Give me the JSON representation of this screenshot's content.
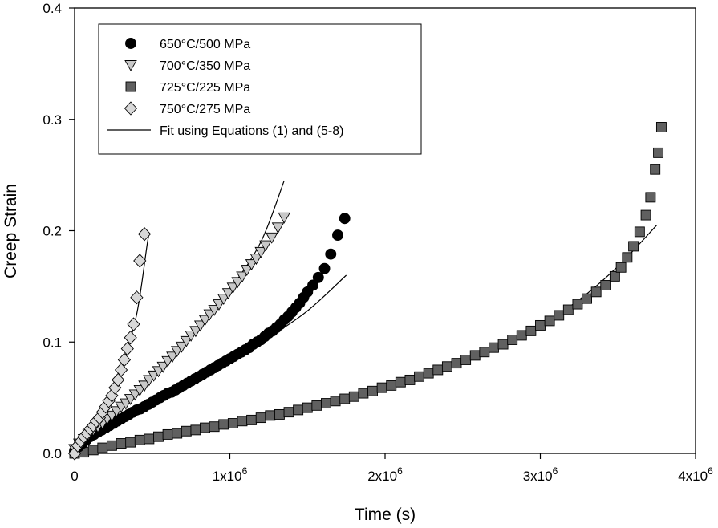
{
  "chart_data": {
    "type": "scatter",
    "title": "",
    "xlabel": "Time (s)",
    "ylabel": "Creep Strain",
    "xlim": [
      0,
      4000000
    ],
    "ylim": [
      0,
      0.4
    ],
    "x_ticks": [
      {
        "value": 0,
        "label": "0",
        "sup": ""
      },
      {
        "value": 1000000,
        "label": "1x10",
        "sup": "6"
      },
      {
        "value": 2000000,
        "label": "2x10",
        "sup": "6"
      },
      {
        "value": 3000000,
        "label": "3x10",
        "sup": "6"
      },
      {
        "value": 4000000,
        "label": "4x10",
        "sup": "6"
      }
    ],
    "y_ticks": [
      {
        "value": 0,
        "label": "0.0"
      },
      {
        "value": 0.1,
        "label": "0.1"
      },
      {
        "value": 0.2,
        "label": "0.2"
      },
      {
        "value": 0.3,
        "label": "0.3"
      },
      {
        "value": 0.4,
        "label": "0.4"
      }
    ],
    "grid": false,
    "legend_position": "top-left",
    "series": [
      {
        "name": "650°C/500 MPa",
        "marker": "circle",
        "color": "#000000",
        "tmax": 1750000,
        "points": [
          [
            0,
            0.002
          ],
          [
            25000,
            0.006
          ],
          [
            50000,
            0.009
          ],
          [
            75000,
            0.012
          ],
          [
            100000,
            0.015
          ],
          [
            125000,
            0.017
          ],
          [
            150000,
            0.019
          ],
          [
            175000,
            0.021
          ],
          [
            200000,
            0.023
          ],
          [
            225000,
            0.025
          ],
          [
            250000,
            0.027
          ],
          [
            275000,
            0.029
          ],
          [
            300000,
            0.031
          ],
          [
            325000,
            0.033
          ],
          [
            350000,
            0.035
          ],
          [
            375000,
            0.037
          ],
          [
            400000,
            0.039
          ],
          [
            425000,
            0.04
          ],
          [
            450000,
            0.042
          ],
          [
            475000,
            0.044
          ],
          [
            500000,
            0.046
          ],
          [
            525000,
            0.048
          ],
          [
            550000,
            0.05
          ],
          [
            575000,
            0.052
          ],
          [
            600000,
            0.054
          ],
          [
            625000,
            0.055
          ],
          [
            650000,
            0.057
          ],
          [
            675000,
            0.059
          ],
          [
            700000,
            0.061
          ],
          [
            725000,
            0.063
          ],
          [
            750000,
            0.065
          ],
          [
            775000,
            0.067
          ],
          [
            800000,
            0.069
          ],
          [
            825000,
            0.071
          ],
          [
            850000,
            0.073
          ],
          [
            875000,
            0.075
          ],
          [
            900000,
            0.077
          ],
          [
            925000,
            0.079
          ],
          [
            950000,
            0.081
          ],
          [
            975000,
            0.083
          ],
          [
            1000000,
            0.085
          ],
          [
            1025000,
            0.087
          ],
          [
            1050000,
            0.089
          ],
          [
            1075000,
            0.091
          ],
          [
            1100000,
            0.093
          ],
          [
            1125000,
            0.095
          ],
          [
            1150000,
            0.098
          ],
          [
            1175000,
            0.1
          ],
          [
            1200000,
            0.102
          ],
          [
            1225000,
            0.105
          ],
          [
            1250000,
            0.108
          ],
          [
            1275000,
            0.11
          ],
          [
            1300000,
            0.113
          ],
          [
            1325000,
            0.116
          ],
          [
            1350000,
            0.12
          ],
          [
            1375000,
            0.123
          ],
          [
            1400000,
            0.127
          ],
          [
            1425000,
            0.131
          ],
          [
            1450000,
            0.135
          ],
          [
            1475000,
            0.14
          ],
          [
            1500000,
            0.145
          ],
          [
            1535000,
            0.151
          ],
          [
            1570000,
            0.158
          ],
          [
            1610000,
            0.166
          ],
          [
            1650000,
            0.179
          ],
          [
            1695000,
            0.196
          ],
          [
            1740000,
            0.211
          ]
        ]
      },
      {
        "name": "700°C/350 MPa",
        "marker": "triangle-down",
        "color": "#c8c8c8",
        "tmax": 1350000,
        "points": [
          [
            0,
            0.004
          ],
          [
            30000,
            0.009
          ],
          [
            60000,
            0.013
          ],
          [
            90000,
            0.017
          ],
          [
            120000,
            0.021
          ],
          [
            150000,
            0.024
          ],
          [
            180000,
            0.027
          ],
          [
            210000,
            0.031
          ],
          [
            240000,
            0.034
          ],
          [
            270000,
            0.038
          ],
          [
            300000,
            0.042
          ],
          [
            330000,
            0.045
          ],
          [
            360000,
            0.049
          ],
          [
            390000,
            0.053
          ],
          [
            420000,
            0.057
          ],
          [
            450000,
            0.061
          ],
          [
            480000,
            0.066
          ],
          [
            510000,
            0.07
          ],
          [
            540000,
            0.074
          ],
          [
            570000,
            0.078
          ],
          [
            600000,
            0.083
          ],
          [
            630000,
            0.087
          ],
          [
            660000,
            0.092
          ],
          [
            690000,
            0.096
          ],
          [
            720000,
            0.101
          ],
          [
            750000,
            0.106
          ],
          [
            780000,
            0.11
          ],
          [
            810000,
            0.115
          ],
          [
            840000,
            0.12
          ],
          [
            870000,
            0.125
          ],
          [
            900000,
            0.129
          ],
          [
            930000,
            0.134
          ],
          [
            960000,
            0.139
          ],
          [
            990000,
            0.144
          ],
          [
            1020000,
            0.149
          ],
          [
            1050000,
            0.154
          ],
          [
            1080000,
            0.159
          ],
          [
            1110000,
            0.165
          ],
          [
            1140000,
            0.17
          ],
          [
            1170000,
            0.175
          ],
          [
            1200000,
            0.181
          ],
          [
            1230000,
            0.187
          ],
          [
            1270000,
            0.194
          ],
          [
            1310000,
            0.203
          ],
          [
            1350000,
            0.212
          ]
        ]
      },
      {
        "name": "725°C/225 MPa",
        "marker": "square",
        "color": "#606060",
        "tmax": 3750000,
        "points": [
          [
            0,
            0
          ],
          [
            60000,
            0.001
          ],
          [
            120000,
            0.003
          ],
          [
            180000,
            0.005
          ],
          [
            240000,
            0.007
          ],
          [
            300000,
            0.009
          ],
          [
            360000,
            0.01
          ],
          [
            420000,
            0.012
          ],
          [
            480000,
            0.013
          ],
          [
            540000,
            0.015
          ],
          [
            600000,
            0.017
          ],
          [
            660000,
            0.018
          ],
          [
            720000,
            0.02
          ],
          [
            780000,
            0.021
          ],
          [
            840000,
            0.023
          ],
          [
            900000,
            0.024
          ],
          [
            960000,
            0.026
          ],
          [
            1020000,
            0.027
          ],
          [
            1080000,
            0.029
          ],
          [
            1140000,
            0.03
          ],
          [
            1200000,
            0.032
          ],
          [
            1260000,
            0.034
          ],
          [
            1320000,
            0.035
          ],
          [
            1380000,
            0.037
          ],
          [
            1440000,
            0.039
          ],
          [
            1500000,
            0.041
          ],
          [
            1560000,
            0.043
          ],
          [
            1620000,
            0.045
          ],
          [
            1680000,
            0.047
          ],
          [
            1740000,
            0.049
          ],
          [
            1800000,
            0.051
          ],
          [
            1860000,
            0.054
          ],
          [
            1920000,
            0.056
          ],
          [
            1980000,
            0.059
          ],
          [
            2040000,
            0.061
          ],
          [
            2100000,
            0.064
          ],
          [
            2160000,
            0.066
          ],
          [
            2220000,
            0.069
          ],
          [
            2280000,
            0.072
          ],
          [
            2340000,
            0.075
          ],
          [
            2400000,
            0.078
          ],
          [
            2460000,
            0.081
          ],
          [
            2520000,
            0.084
          ],
          [
            2580000,
            0.088
          ],
          [
            2640000,
            0.091
          ],
          [
            2700000,
            0.095
          ],
          [
            2760000,
            0.098
          ],
          [
            2820000,
            0.102
          ],
          [
            2880000,
            0.106
          ],
          [
            2940000,
            0.11
          ],
          [
            3000000,
            0.115
          ],
          [
            3060000,
            0.119
          ],
          [
            3120000,
            0.124
          ],
          [
            3180000,
            0.129
          ],
          [
            3240000,
            0.134
          ],
          [
            3300000,
            0.139
          ],
          [
            3360000,
            0.145
          ],
          [
            3420000,
            0.151
          ],
          [
            3480000,
            0.159
          ],
          [
            3520000,
            0.167
          ],
          [
            3560000,
            0.176
          ],
          [
            3600000,
            0.186
          ],
          [
            3640000,
            0.199
          ],
          [
            3680000,
            0.214
          ],
          [
            3710000,
            0.23
          ],
          [
            3740000,
            0.255
          ],
          [
            3760000,
            0.27
          ],
          [
            3780000,
            0.293
          ]
        ]
      },
      {
        "name": "750°C/275 MPa",
        "marker": "diamond",
        "color": "#d8d8d8",
        "tmax": 480000,
        "points": [
          [
            0,
            0
          ],
          [
            20000,
            0.007
          ],
          [
            40000,
            0.011
          ],
          [
            60000,
            0.015
          ],
          [
            80000,
            0.018
          ],
          [
            100000,
            0.022
          ],
          [
            120000,
            0.025
          ],
          [
            140000,
            0.029
          ],
          [
            160000,
            0.032
          ],
          [
            180000,
            0.037
          ],
          [
            200000,
            0.042
          ],
          [
            220000,
            0.047
          ],
          [
            240000,
            0.052
          ],
          [
            260000,
            0.059
          ],
          [
            280000,
            0.066
          ],
          [
            300000,
            0.075
          ],
          [
            320000,
            0.084
          ],
          [
            340000,
            0.094
          ],
          [
            360000,
            0.104
          ],
          [
            380000,
            0.116
          ],
          [
            400000,
            0.14
          ],
          [
            420000,
            0.173
          ],
          [
            450000,
            0.197
          ]
        ]
      }
    ],
    "fit_name": "Fit using Equations (1) and (5-8)",
    "fit_curves": [
      {
        "for": "650°C/500 MPa",
        "points": [
          [
            0,
            0.004
          ],
          [
            250000,
            0.027
          ],
          [
            500000,
            0.046
          ],
          [
            750000,
            0.064
          ],
          [
            1000000,
            0.083
          ],
          [
            1250000,
            0.104
          ],
          [
            1500000,
            0.128
          ],
          [
            1750000,
            0.16
          ]
        ]
      },
      {
        "for": "700°C/350 MPa",
        "points": [
          [
            0,
            0.004
          ],
          [
            200000,
            0.028
          ],
          [
            400000,
            0.053
          ],
          [
            600000,
            0.08
          ],
          [
            800000,
            0.111
          ],
          [
            1000000,
            0.147
          ],
          [
            1200000,
            0.19
          ],
          [
            1350000,
            0.245
          ]
        ]
      },
      {
        "for": "725°C/225 MPa",
        "points": [
          [
            0,
            0
          ],
          [
            500000,
            0.013
          ],
          [
            1000000,
            0.027
          ],
          [
            1500000,
            0.042
          ],
          [
            2000000,
            0.06
          ],
          [
            2500000,
            0.082
          ],
          [
            3000000,
            0.116
          ],
          [
            3250000,
            0.138
          ],
          [
            3500000,
            0.168
          ],
          [
            3750000,
            0.205
          ]
        ]
      },
      {
        "for": "750°C/275 MPa",
        "points": [
          [
            0,
            0.005
          ],
          [
            100000,
            0.024
          ],
          [
            200000,
            0.044
          ],
          [
            300000,
            0.076
          ],
          [
            400000,
            0.125
          ],
          [
            470000,
            0.19
          ],
          [
            485000,
            0.197
          ]
        ]
      }
    ]
  }
}
